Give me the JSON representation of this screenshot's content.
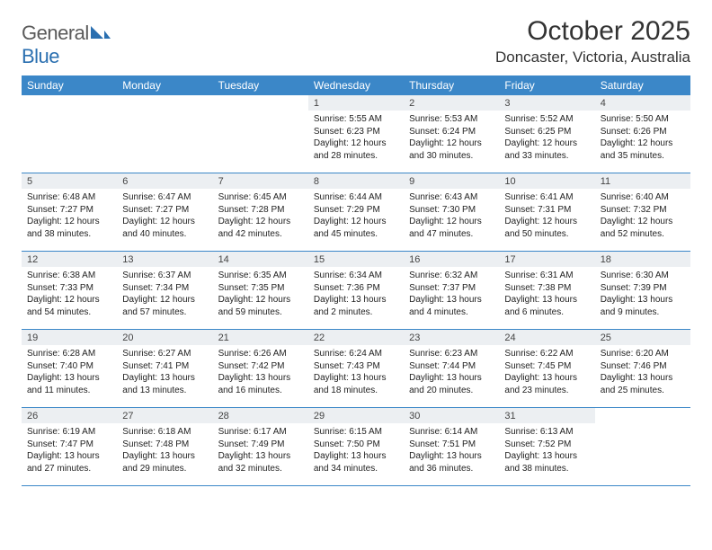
{
  "logo": {
    "text1": "General",
    "text2": "Blue"
  },
  "title": "October 2025",
  "location": "Doncaster, Victoria, Australia",
  "style": {
    "header_bg": "#3b87c8",
    "header_fg": "#ffffff",
    "daynum_bg": "#eceff2",
    "border_color": "#3b87c8",
    "title_fontsize": 30,
    "location_fontsize": 17,
    "dayheader_fontsize": 12,
    "daynum_fontsize": 11,
    "body_fontsize": 10
  },
  "day_names": [
    "Sunday",
    "Monday",
    "Tuesday",
    "Wednesday",
    "Thursday",
    "Friday",
    "Saturday"
  ],
  "weeks": [
    [
      null,
      null,
      null,
      {
        "n": "1",
        "sr": "Sunrise: 5:55 AM",
        "ss": "Sunset: 6:23 PM",
        "d1": "Daylight: 12 hours",
        "d2": "and 28 minutes."
      },
      {
        "n": "2",
        "sr": "Sunrise: 5:53 AM",
        "ss": "Sunset: 6:24 PM",
        "d1": "Daylight: 12 hours",
        "d2": "and 30 minutes."
      },
      {
        "n": "3",
        "sr": "Sunrise: 5:52 AM",
        "ss": "Sunset: 6:25 PM",
        "d1": "Daylight: 12 hours",
        "d2": "and 33 minutes."
      },
      {
        "n": "4",
        "sr": "Sunrise: 5:50 AM",
        "ss": "Sunset: 6:26 PM",
        "d1": "Daylight: 12 hours",
        "d2": "and 35 minutes."
      }
    ],
    [
      {
        "n": "5",
        "sr": "Sunrise: 6:48 AM",
        "ss": "Sunset: 7:27 PM",
        "d1": "Daylight: 12 hours",
        "d2": "and 38 minutes."
      },
      {
        "n": "6",
        "sr": "Sunrise: 6:47 AM",
        "ss": "Sunset: 7:27 PM",
        "d1": "Daylight: 12 hours",
        "d2": "and 40 minutes."
      },
      {
        "n": "7",
        "sr": "Sunrise: 6:45 AM",
        "ss": "Sunset: 7:28 PM",
        "d1": "Daylight: 12 hours",
        "d2": "and 42 minutes."
      },
      {
        "n": "8",
        "sr": "Sunrise: 6:44 AM",
        "ss": "Sunset: 7:29 PM",
        "d1": "Daylight: 12 hours",
        "d2": "and 45 minutes."
      },
      {
        "n": "9",
        "sr": "Sunrise: 6:43 AM",
        "ss": "Sunset: 7:30 PM",
        "d1": "Daylight: 12 hours",
        "d2": "and 47 minutes."
      },
      {
        "n": "10",
        "sr": "Sunrise: 6:41 AM",
        "ss": "Sunset: 7:31 PM",
        "d1": "Daylight: 12 hours",
        "d2": "and 50 minutes."
      },
      {
        "n": "11",
        "sr": "Sunrise: 6:40 AM",
        "ss": "Sunset: 7:32 PM",
        "d1": "Daylight: 12 hours",
        "d2": "and 52 minutes."
      }
    ],
    [
      {
        "n": "12",
        "sr": "Sunrise: 6:38 AM",
        "ss": "Sunset: 7:33 PM",
        "d1": "Daylight: 12 hours",
        "d2": "and 54 minutes."
      },
      {
        "n": "13",
        "sr": "Sunrise: 6:37 AM",
        "ss": "Sunset: 7:34 PM",
        "d1": "Daylight: 12 hours",
        "d2": "and 57 minutes."
      },
      {
        "n": "14",
        "sr": "Sunrise: 6:35 AM",
        "ss": "Sunset: 7:35 PM",
        "d1": "Daylight: 12 hours",
        "d2": "and 59 minutes."
      },
      {
        "n": "15",
        "sr": "Sunrise: 6:34 AM",
        "ss": "Sunset: 7:36 PM",
        "d1": "Daylight: 13 hours",
        "d2": "and 2 minutes."
      },
      {
        "n": "16",
        "sr": "Sunrise: 6:32 AM",
        "ss": "Sunset: 7:37 PM",
        "d1": "Daylight: 13 hours",
        "d2": "and 4 minutes."
      },
      {
        "n": "17",
        "sr": "Sunrise: 6:31 AM",
        "ss": "Sunset: 7:38 PM",
        "d1": "Daylight: 13 hours",
        "d2": "and 6 minutes."
      },
      {
        "n": "18",
        "sr": "Sunrise: 6:30 AM",
        "ss": "Sunset: 7:39 PM",
        "d1": "Daylight: 13 hours",
        "d2": "and 9 minutes."
      }
    ],
    [
      {
        "n": "19",
        "sr": "Sunrise: 6:28 AM",
        "ss": "Sunset: 7:40 PM",
        "d1": "Daylight: 13 hours",
        "d2": "and 11 minutes."
      },
      {
        "n": "20",
        "sr": "Sunrise: 6:27 AM",
        "ss": "Sunset: 7:41 PM",
        "d1": "Daylight: 13 hours",
        "d2": "and 13 minutes."
      },
      {
        "n": "21",
        "sr": "Sunrise: 6:26 AM",
        "ss": "Sunset: 7:42 PM",
        "d1": "Daylight: 13 hours",
        "d2": "and 16 minutes."
      },
      {
        "n": "22",
        "sr": "Sunrise: 6:24 AM",
        "ss": "Sunset: 7:43 PM",
        "d1": "Daylight: 13 hours",
        "d2": "and 18 minutes."
      },
      {
        "n": "23",
        "sr": "Sunrise: 6:23 AM",
        "ss": "Sunset: 7:44 PM",
        "d1": "Daylight: 13 hours",
        "d2": "and 20 minutes."
      },
      {
        "n": "24",
        "sr": "Sunrise: 6:22 AM",
        "ss": "Sunset: 7:45 PM",
        "d1": "Daylight: 13 hours",
        "d2": "and 23 minutes."
      },
      {
        "n": "25",
        "sr": "Sunrise: 6:20 AM",
        "ss": "Sunset: 7:46 PM",
        "d1": "Daylight: 13 hours",
        "d2": "and 25 minutes."
      }
    ],
    [
      {
        "n": "26",
        "sr": "Sunrise: 6:19 AM",
        "ss": "Sunset: 7:47 PM",
        "d1": "Daylight: 13 hours",
        "d2": "and 27 minutes."
      },
      {
        "n": "27",
        "sr": "Sunrise: 6:18 AM",
        "ss": "Sunset: 7:48 PM",
        "d1": "Daylight: 13 hours",
        "d2": "and 29 minutes."
      },
      {
        "n": "28",
        "sr": "Sunrise: 6:17 AM",
        "ss": "Sunset: 7:49 PM",
        "d1": "Daylight: 13 hours",
        "d2": "and 32 minutes."
      },
      {
        "n": "29",
        "sr": "Sunrise: 6:15 AM",
        "ss": "Sunset: 7:50 PM",
        "d1": "Daylight: 13 hours",
        "d2": "and 34 minutes."
      },
      {
        "n": "30",
        "sr": "Sunrise: 6:14 AM",
        "ss": "Sunset: 7:51 PM",
        "d1": "Daylight: 13 hours",
        "d2": "and 36 minutes."
      },
      {
        "n": "31",
        "sr": "Sunrise: 6:13 AM",
        "ss": "Sunset: 7:52 PM",
        "d1": "Daylight: 13 hours",
        "d2": "and 38 minutes."
      },
      null
    ]
  ]
}
